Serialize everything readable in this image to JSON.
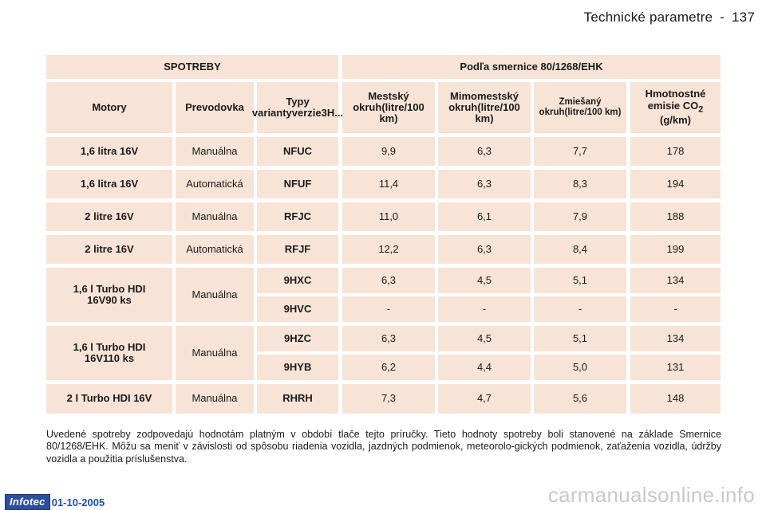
{
  "header": {
    "section": "Technické parametre",
    "separator": "-",
    "page_number": "137"
  },
  "table": {
    "group_left": "SPOTREBY",
    "group_right": "Podľa smernice 80/1268/EHK",
    "columns": {
      "engine": "Motory",
      "gearbox": "Prevodovka",
      "variant": "Typy variantyverzie3H...",
      "urban": "Mestský okruh(litre/100 km)",
      "extra_urban": "Mimomestský okruh(litre/100 km)",
      "combined": "Zmiešaný okruh(litre/100 km)",
      "co2_prefix": "Hmotnostné emisie CO",
      "co2_sub": "2",
      "co2_suffix": " (g/km)"
    },
    "rows": [
      {
        "engine": "1,6 litra 16V",
        "gearbox": "Manuálna",
        "code": "NFUC",
        "urban": "9,9",
        "extra": "6,3",
        "combined": "7,7",
        "co2": "178"
      },
      {
        "engine": "1,6 litra 16V",
        "gearbox": "Automatická",
        "code": "NFUF",
        "urban": "11,4",
        "extra": "6,3",
        "combined": "8,3",
        "co2": "194"
      },
      {
        "engine": "2 litre 16V",
        "gearbox": "Manuálna",
        "code": "RFJC",
        "urban": "11,0",
        "extra": "6,1",
        "combined": "7,9",
        "co2": "188"
      },
      {
        "engine": "2 litre 16V",
        "gearbox": "Automatická",
        "code": "RFJF",
        "urban": "12,2",
        "extra": "6,3",
        "combined": "8,4",
        "co2": "199"
      },
      {
        "engine": "1,6 l Turbo HDI 16V90 ks",
        "gearbox": "Manuálna",
        "code": "9HXC",
        "urban": "6,3",
        "extra": "4,5",
        "combined": "5,1",
        "co2": "134"
      },
      {
        "engine": "",
        "gearbox": "",
        "code": "9HVC",
        "urban": "-",
        "extra": "-",
        "combined": "-",
        "co2": "-"
      },
      {
        "engine": "1,6 l Turbo HDI 16V110 ks",
        "gearbox": "Manuálna",
        "code": "9HZC",
        "urban": "6,3",
        "extra": "4,5",
        "combined": "5,1",
        "co2": "134"
      },
      {
        "engine": "",
        "gearbox": "",
        "code": "9HYB",
        "urban": "6,2",
        "extra": "4,4",
        "combined": "5,0",
        "co2": "131"
      },
      {
        "engine": "2 l Turbo HDI 16V",
        "gearbox": "Manuálna",
        "code": "RHRH",
        "urban": "7,3",
        "extra": "4,7",
        "combined": "5,6",
        "co2": "148"
      }
    ]
  },
  "footnote": "Uvedené spotreby zodpovedajú hodnotám platným v období tlače tejto príručky. Tieto hodnoty spotreby boli stanovené na základe Smernice 80/1268/EHK. Môžu sa meniť v závislosti od spôsobu riadenia vozidla, jazdných podmienok, meteorolo-gických podmienok, zaťaženia vozidla, údržby vozidla a použitia príslušenstva.",
  "footer": {
    "brand": "Infotec",
    "date": "01-10-2005"
  },
  "watermark": "carmanualsonline.info"
}
